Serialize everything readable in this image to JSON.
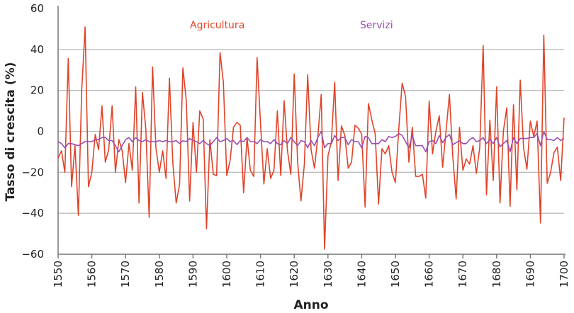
{
  "chart_data": {
    "type": "line",
    "title": "",
    "xlabel": "Anno",
    "ylabel": "Tasso di crescita (%)",
    "xlim": [
      1550,
      1700
    ],
    "ylim": [
      -60,
      60
    ],
    "xticks": [
      1550,
      1560,
      1570,
      1580,
      1590,
      1600,
      1610,
      1620,
      1630,
      1640,
      1650,
      1660,
      1670,
      1680,
      1690,
      1700
    ],
    "yticks": [
      60,
      40,
      20,
      0,
      -20,
      -40,
      -60
    ],
    "ytick_labels": [
      "60",
      "40",
      "20",
      "0",
      "−20",
      "−40",
      "−60"
    ],
    "grid": true,
    "x_start": 1550,
    "series": [
      {
        "name": "Agricultura",
        "color": "#e0442a",
        "values": [
          -13,
          -9.5,
          -20,
          35.6,
          -27,
          -7,
          -41,
          20,
          51,
          -27,
          -20,
          -1.5,
          -9,
          12.5,
          -15,
          -9,
          12.5,
          -20,
          -4,
          -9.5,
          -25,
          -6,
          -19,
          21.7,
          -35,
          19,
          1,
          -42,
          31.5,
          -8,
          -20,
          -9.5,
          -23,
          26,
          -15,
          -35,
          -26,
          31,
          15,
          -34,
          4.4,
          -20,
          10,
          6,
          -47.6,
          -4,
          -21,
          -21.6,
          38.5,
          24,
          -21.6,
          -14,
          2,
          4.4,
          3,
          -30,
          -3,
          -19,
          -22,
          36,
          4,
          -25.7,
          -8.5,
          -23,
          -19,
          10,
          -21.6,
          15,
          -9.5,
          -21,
          28,
          -15,
          -34,
          -16,
          27.7,
          -9,
          -18,
          -2.5,
          18,
          -57.5,
          -12,
          -5,
          24,
          -24,
          2.7,
          -2,
          -18,
          -15,
          3,
          1.5,
          -1.4,
          -37,
          13.6,
          5.5,
          -1,
          -35.5,
          -8.5,
          -11,
          -7,
          -20,
          -25,
          1.5,
          23.5,
          17,
          -15,
          2,
          -22,
          -22,
          -21,
          -32.6,
          14.8,
          -11,
          0,
          7.6,
          -17.5,
          0,
          18,
          -12,
          -33,
          2,
          -19,
          -13.5,
          -16,
          -7,
          -20.5,
          -8,
          42,
          -31,
          5.5,
          -24,
          21.7,
          -35,
          0,
          11.5,
          -36.6,
          13,
          -28.5,
          25,
          -8.3,
          -18.5,
          5,
          -2.5,
          5,
          -44.7,
          47,
          -25.4,
          -20,
          -10.4,
          -7.7,
          -24,
          6.7
        ]
      },
      {
        "name": "Servizi",
        "color": "#9b4fb0",
        "values": [
          -5,
          -6,
          -8,
          -6,
          -6,
          -6.5,
          -7,
          -6,
          -5,
          -5,
          -5,
          -4,
          -4,
          -3,
          -3,
          -4.5,
          -4.5,
          -7,
          -10,
          -7,
          -4,
          -3,
          -5,
          -3,
          -4.5,
          -5,
          -4,
          -5,
          -5,
          -5,
          -4.5,
          -5,
          -4.5,
          -5,
          -5,
          -4.5,
          -6,
          -4.6,
          -5,
          -3.5,
          -4.5,
          -5,
          -6,
          -4.5,
          -6,
          -7,
          -5,
          -3,
          -5,
          -4.5,
          -3.5,
          -5,
          -4.5,
          -6.5,
          -4.5,
          -5,
          -3,
          -5,
          -5,
          -6,
          -4,
          -5,
          -5,
          -6,
          -4,
          -6,
          -6.5,
          -4.5,
          -6,
          -3,
          -5,
          -7,
          -4.5,
          -5,
          -8,
          -4.5,
          -7,
          -3,
          0,
          -8,
          -6,
          -6,
          -2,
          -4.5,
          -3,
          -3,
          -6.5,
          -4,
          -5,
          -5,
          -8,
          -2.5,
          -3,
          -6,
          -6,
          -6,
          -4,
          -5,
          -2.5,
          -3,
          -2.5,
          -1,
          -2,
          -5,
          -8,
          -2,
          -7,
          -7,
          -7,
          -10,
          -5,
          -4.5,
          -6,
          -2,
          -5.5,
          -3,
          -1.5,
          -6.5,
          -5.5,
          -4.5,
          -6,
          -6,
          -4,
          -3,
          -5,
          -4.5,
          -3,
          -6,
          -4,
          -6,
          -3,
          -7.5,
          -6,
          -4.5,
          -10,
          -3,
          -6,
          -3.5,
          -3.5,
          -3.5,
          -3,
          -3,
          -1,
          -7,
          0,
          -4,
          -4,
          -4.5,
          -3,
          -4.5,
          -3.5
        ]
      }
    ]
  }
}
